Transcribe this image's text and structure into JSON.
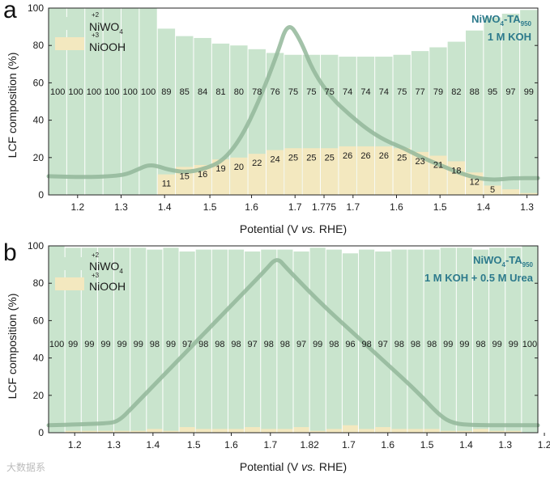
{
  "colors": {
    "niwo4": "#c9e4cd",
    "niooh": "#f3e8bf",
    "curve": "#93b79a",
    "annotation": "#2d7a8c",
    "axis": "#222222"
  },
  "watermark": "大数据系",
  "chart_data": [
    {
      "panel": "a",
      "type": "bar",
      "stacked": true,
      "xlabel": "Potential (V vs. RHE)",
      "ylabel": "LCF composition (%)",
      "ylim": [
        0,
        100
      ],
      "yticks": [
        "0",
        "20",
        "40",
        "60",
        "80",
        "100"
      ],
      "xticks": [
        "1.2",
        "1.3",
        "1.4",
        "1.5",
        "1.6",
        "1.7",
        "1.775",
        "1.7",
        "1.6",
        "1.5",
        "1.4",
        "1.3",
        "1.2"
      ],
      "annotation": {
        "title": "NiWO",
        "sub4": "4",
        "title_mid": "-TA",
        "sub950": "950",
        "line2": "1 M KOH"
      },
      "legend": [
        {
          "label_main": "NiWO",
          "label_sub": "4",
          "sup": "+2"
        },
        {
          "label_main": "NiOOH",
          "label_sub": "",
          "sup": "+3"
        }
      ],
      "series": [
        {
          "name": "NiWO4",
          "values": [
            100,
            100,
            100,
            100,
            100,
            100,
            89,
            85,
            84,
            81,
            80,
            78,
            76,
            75,
            75,
            75,
            74,
            74,
            74,
            75,
            77,
            79,
            82,
            88,
            95,
            97,
            99
          ]
        },
        {
          "name": "NiOOH",
          "values": [
            0,
            0,
            0,
            0,
            0,
            0,
            11,
            15,
            16,
            19,
            20,
            22,
            24,
            25,
            25,
            25,
            26,
            26,
            26,
            25,
            23,
            21,
            18,
            12,
            5,
            3,
            1
          ]
        }
      ],
      "labels": {
        "niwo4": [
          "100",
          "100",
          "100",
          "100",
          "100",
          "100",
          "89",
          "85",
          "84",
          "81",
          "80",
          "78",
          "76",
          "75",
          "75",
          "75",
          "74",
          "74",
          "74",
          "75",
          "77",
          "79",
          "82",
          "88",
          "95",
          "97",
          "99"
        ],
        "niooh": [
          "",
          "",
          "",
          "",
          "",
          "",
          "11",
          "15",
          "16",
          "19",
          "20",
          "22",
          "24",
          "25",
          "25",
          "25",
          "26",
          "26",
          "26",
          "25",
          "23",
          "21",
          "18",
          "12",
          "5",
          "",
          ""
        ]
      },
      "curve": [
        [
          0,
          10
        ],
        [
          2,
          9.5
        ],
        [
          3.5,
          10
        ],
        [
          4.3,
          11
        ],
        [
          5,
          14
        ],
        [
          5.5,
          16
        ],
        [
          6,
          15.5
        ],
        [
          6.6,
          13.5
        ],
        [
          7.6,
          12
        ],
        [
          8.6,
          14
        ],
        [
          9.6,
          18
        ],
        [
          10.6,
          30
        ],
        [
          11.6,
          50
        ],
        [
          12.6,
          75
        ],
        [
          13.2,
          93
        ],
        [
          13.9,
          83
        ],
        [
          14.6,
          66
        ],
        [
          15.6,
          52
        ],
        [
          16.6,
          43
        ],
        [
          17.6,
          35
        ],
        [
          18.6,
          29
        ],
        [
          19.6,
          25
        ],
        [
          20.6,
          20
        ],
        [
          21.6,
          16
        ],
        [
          22.6,
          12
        ],
        [
          23.6,
          9
        ],
        [
          24.6,
          8
        ],
        [
          25.6,
          9
        ],
        [
          27,
          9
        ]
      ]
    },
    {
      "panel": "b",
      "type": "bar",
      "stacked": true,
      "xlabel": "Potential (V vs. RHE)",
      "ylabel": "LCF composition (%)",
      "ylim": [
        0,
        100
      ],
      "yticks": [
        "0",
        "20",
        "40",
        "60",
        "80",
        "100"
      ],
      "xticks": [
        "1.2",
        "1.3",
        "1.4",
        "1.5",
        "1.6",
        "1.7",
        "1.82",
        "1.7",
        "1.6",
        "1.5",
        "1.4",
        "1.3",
        "1.2"
      ],
      "annotation": {
        "title": "NiWO",
        "sub4": "4",
        "title_mid": "-TA",
        "sub950": "950",
        "line2": "1 M KOH + 0.5 M Urea"
      },
      "legend": [
        {
          "label_main": "NiWO",
          "label_sub": "4",
          "sup": "+2"
        },
        {
          "label_main": "NiOOH",
          "label_sub": "",
          "sup": "+3"
        }
      ],
      "series": [
        {
          "name": "NiWO4",
          "values": [
            100,
            99,
            99,
            99,
            99,
            99,
            98,
            99,
            97,
            98,
            98,
            98,
            97,
            98,
            98,
            97,
            99,
            98,
            96,
            98,
            97,
            98,
            98,
            98,
            99,
            99,
            98,
            99,
            99,
            100
          ]
        },
        {
          "name": "NiOOH",
          "values": [
            0,
            1,
            1,
            1,
            1,
            1,
            2,
            1,
            3,
            2,
            2,
            2,
            3,
            2,
            2,
            3,
            1,
            2,
            4,
            2,
            3,
            2,
            2,
            2,
            1,
            1,
            2,
            1,
            1,
            0
          ]
        }
      ],
      "labels": {
        "niwo4": [
          "100",
          "99",
          "99",
          "99",
          "99",
          "99",
          "98",
          "99",
          "97",
          "98",
          "98",
          "98",
          "97",
          "98",
          "98",
          "97",
          "99",
          "98",
          "96",
          "98",
          "97",
          "98",
          "98",
          "98",
          "99",
          "99",
          "98",
          "99",
          "99",
          "100"
        ]
      },
      "curve": [
        [
          0,
          4
        ],
        [
          2,
          4.5
        ],
        [
          3.5,
          5
        ],
        [
          4.3,
          6
        ],
        [
          5.3,
          15
        ],
        [
          7.3,
          33
        ],
        [
          9.3,
          51
        ],
        [
          11.3,
          69
        ],
        [
          13.3,
          87
        ],
        [
          14,
          94
        ],
        [
          14.6,
          88
        ],
        [
          16.6,
          70
        ],
        [
          18.6,
          54
        ],
        [
          20.6,
          38
        ],
        [
          22.6,
          22
        ],
        [
          24,
          9
        ],
        [
          24.8,
          5
        ],
        [
          26,
          4
        ],
        [
          30,
          4
        ]
      ]
    }
  ]
}
